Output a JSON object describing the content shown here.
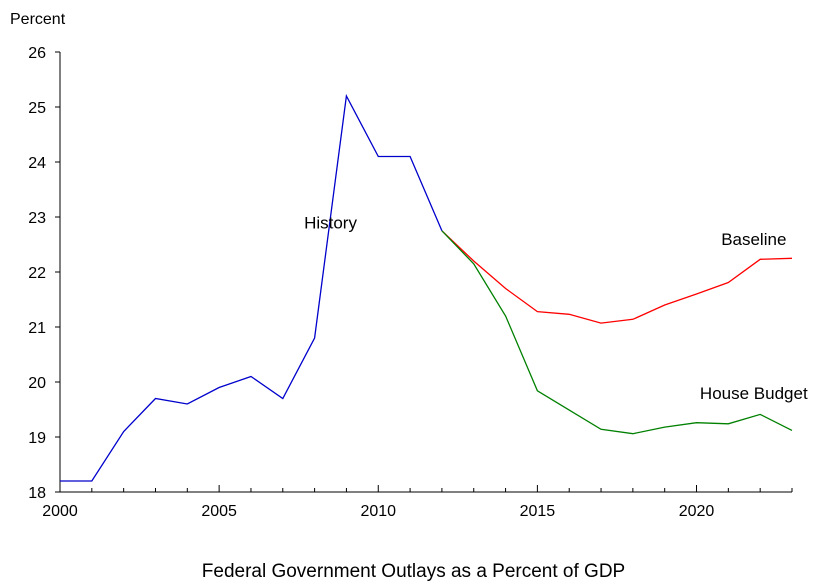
{
  "chart_data": {
    "type": "line",
    "title": "Federal Government Outlays as a Percent of GDP",
    "ylabel": "Percent",
    "xlabel": "",
    "xlim": [
      2000,
      2023
    ],
    "ylim": [
      18,
      26
    ],
    "x_ticks": [
      2000,
      2005,
      2010,
      2015,
      2020
    ],
    "y_ticks": [
      18,
      19,
      20,
      21,
      22,
      23,
      24,
      25,
      26
    ],
    "grid": false,
    "legend": "none",
    "series": [
      {
        "name": "History",
        "color": "#0000cc",
        "x": [
          2000,
          2001,
          2002,
          2003,
          2004,
          2005,
          2006,
          2007,
          2008,
          2009,
          2010,
          2011,
          2012
        ],
        "y": [
          18.2,
          18.2,
          19.1,
          19.7,
          19.6,
          19.9,
          20.1,
          19.7,
          20.8,
          25.2,
          24.1,
          24.1,
          22.75
        ]
      },
      {
        "name": "Baseline",
        "color": "#ff0000",
        "x": [
          2012,
          2013,
          2014,
          2015,
          2016,
          2017,
          2018,
          2019,
          2020,
          2021,
          2022,
          2023
        ],
        "y": [
          22.75,
          22.2,
          21.7,
          21.28,
          21.23,
          21.07,
          21.14,
          21.4,
          21.6,
          21.81,
          22.23,
          22.25
        ]
      },
      {
        "name": "House Budget",
        "color": "#008000",
        "x": [
          2012,
          2013,
          2014,
          2015,
          2016,
          2017,
          2018,
          2019,
          2020,
          2021,
          2022,
          2023
        ],
        "y": [
          22.75,
          22.15,
          21.2,
          19.84,
          19.49,
          19.14,
          19.06,
          19.18,
          19.26,
          19.24,
          19.41,
          19.12
        ]
      }
    ],
    "annotations": [
      {
        "text": "History",
        "series": "History",
        "x": 2008.5,
        "y": 22.9
      },
      {
        "text": "Baseline",
        "series": "Baseline",
        "x": 2021.8,
        "y": 22.6
      },
      {
        "text": "House Budget",
        "series": "House Budget",
        "x": 2021.8,
        "y": 19.8
      }
    ]
  }
}
